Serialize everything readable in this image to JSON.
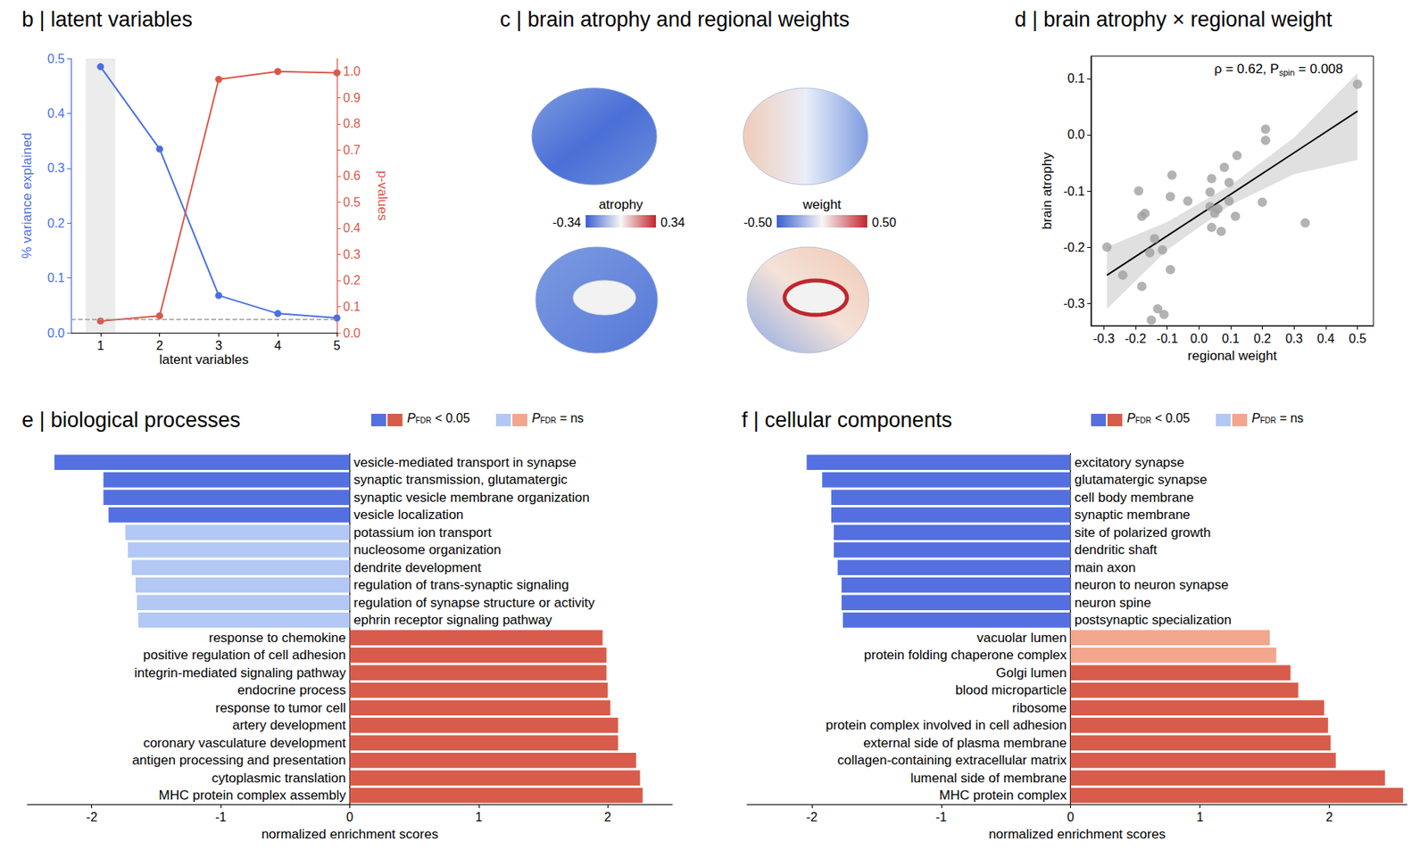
{
  "chart_data": [
    {
      "type": "line",
      "title": "b | latent variables",
      "x_label": "latent variables",
      "x": [
        1,
        2,
        3,
        4,
        5
      ],
      "xlim": [
        0.5,
        5
      ],
      "xticks": [
        1,
        2,
        3,
        4,
        5
      ],
      "highlight": [
        0.75,
        1.25
      ],
      "series": [
        {
          "name": "% variance explained",
          "color": "#4a6fe3",
          "marker": "circle",
          "values": [
            0.485,
            0.335,
            0.068,
            0.035,
            0.027
          ]
        },
        {
          "name": "p-values",
          "color": "#d9584a",
          "marker": "circle",
          "axis": "y2",
          "values": [
            0.045,
            0.065,
            0.97,
            1.0,
            0.995
          ],
          "reference_line": 0.05
        }
      ],
      "ylim": [
        0,
        0.5
      ],
      "yticks": [
        {
          "value": 0,
          "label": "0.0"
        },
        0.1,
        0.2,
        0.3,
        0.4,
        0.5
      ],
      "y2lim": [
        0,
        1.05
      ],
      "y2ticks": [
        {
          "value": 0,
          "label": "0.0"
        },
        0.1,
        0.2,
        0.3,
        0.4,
        0.5,
        0.6,
        0.7,
        0.8,
        0.9,
        {
          "value": 1,
          "label": "1.0"
        }
      ]
    },
    {
      "type": "brain_map",
      "title": "c | brain atrophy and regional weights",
      "colorbars": [
        {
          "label": "atrophy",
          "range": [
            -0.34,
            0.34
          ],
          "ticks": [
            -0.34,
            0.34
          ],
          "colors": [
            "#3a5fd0",
            "#f7f7f7",
            "#c0262d"
          ]
        },
        {
          "label": "weight",
          "range": [
            -0.5,
            0.5
          ],
          "ticks": [
            {
              "value": -0.5,
              "label": "-0.50"
            },
            {
              "value": 0.5,
              "label": "0.50"
            }
          ],
          "colors": [
            "#3a5fd0",
            "#f7f7f7",
            "#c0262d"
          ]
        }
      ]
    },
    {
      "type": "scatter",
      "title": "d | brain atrophy × regional weight",
      "x_label": "regional weight",
      "y_label": "brain atrophy",
      "color": "#a0a0a0",
      "annotation": {
        "text": "ρ = 0.62, P",
        "subscript": "spin",
        "suffix": " = 0.008"
      },
      "x": [
        0.5,
        -0.29,
        -0.24,
        -0.19,
        -0.18,
        -0.17,
        -0.18,
        -0.15,
        -0.14,
        -0.13,
        -0.11,
        -0.155,
        -0.115,
        -0.085,
        -0.09,
        -0.09,
        -0.035,
        0.035,
        0.04,
        0.035,
        0.05,
        0.04,
        0.06,
        0.07,
        0.08,
        0.095,
        0.095,
        0.12,
        0.115,
        0.2,
        0.21,
        0.21,
        0.335
      ],
      "y": [
        0.09,
        -0.2,
        -0.25,
        -0.1,
        -0.145,
        -0.14,
        -0.27,
        -0.33,
        -0.185,
        -0.31,
        -0.32,
        -0.21,
        -0.205,
        -0.072,
        -0.11,
        -0.24,
        -0.118,
        -0.102,
        -0.078,
        -0.128,
        -0.14,
        -0.165,
        -0.132,
        -0.172,
        -0.058,
        -0.085,
        -0.118,
        -0.037,
        -0.145,
        -0.12,
        0.01,
        -0.01,
        -0.157
      ],
      "fit": {
        "x": [
          -0.29,
          -0.1,
          0.1,
          0.3,
          0.5
        ],
        "y": [
          -0.25,
          -0.18,
          -0.106,
          -0.032,
          0.042
        ],
        "upper": [
          -0.2,
          -0.155,
          -0.09,
          -0.005,
          0.11
        ],
        "lower": [
          -0.31,
          -0.205,
          -0.125,
          -0.07,
          -0.045
        ]
      },
      "xlim": [
        -0.34,
        0.55
      ],
      "xticks": [
        -0.3,
        -0.2,
        -0.1,
        {
          "value": 0,
          "label": "0.0"
        },
        0.1,
        0.2,
        0.3,
        0.4,
        0.5
      ],
      "ylim": [
        -0.34,
        0.14
      ],
      "yticks": [
        -0.3,
        -0.2,
        -0.1,
        {
          "value": 0,
          "label": "0.0"
        },
        0.1
      ]
    },
    {
      "type": "bar",
      "orientation": "horizontal",
      "title": "e | biological processes",
      "x_label": "normalized enrichment scores",
      "categories": [
        "vesicle-mediated transport in synapse",
        "synaptic transmission, glutamatergic",
        "synaptic vesicle membrane organization",
        "vesicle localization",
        "potassium ion transport",
        "nucleosome organization",
        "dendrite development",
        "regulation of trans-synaptic signaling",
        "regulation of synapse structure or activity",
        "ephrin receptor signaling pathway",
        "response to chemokine",
        "positive regulation of cell adhesion",
        "integrin-mediated signaling pathway",
        "endocrine process",
        "response to tumor cell",
        "artery development",
        "coronary vasculature development",
        "antigen processing and presentation",
        "cytoplasmic translation",
        "MHC protein complex assembly"
      ],
      "values": [
        -2.29,
        -1.91,
        -1.91,
        -1.87,
        -1.74,
        -1.72,
        -1.69,
        -1.66,
        -1.65,
        -1.64,
        1.96,
        1.99,
        1.99,
        2.0,
        2.02,
        2.08,
        2.08,
        2.22,
        2.25,
        2.27
      ],
      "colors": [
        "#5470e0",
        "#5470e0",
        "#5470e0",
        "#5470e0",
        "#b3c8f4",
        "#b3c8f4",
        "#b3c8f4",
        "#b3c8f4",
        "#b3c8f4",
        "#b3c8f4",
        "#d85c4b",
        "#d85c4b",
        "#d85c4b",
        "#d85c4b",
        "#d85c4b",
        "#d85c4b",
        "#d85c4b",
        "#d85c4b",
        "#d85c4b",
        "#d85c4b"
      ],
      "key": [
        {
          "text": "P",
          "subscript": "FDR",
          "suffix": " < 0.05",
          "colors": [
            "#5470e0",
            "#d85c4b"
          ]
        },
        {
          "text": "P",
          "subscript": "FDR",
          "suffix": " = ns",
          "colors": [
            "#b3c8f4",
            "#f3a68d"
          ]
        }
      ],
      "xlim": [
        -2.5,
        2.5
      ],
      "xticks": [
        -2,
        -1,
        0,
        1,
        2
      ]
    },
    {
      "type": "bar",
      "orientation": "horizontal",
      "title": "f | cellular components",
      "x_label": "normalized enrichment scores",
      "categories": [
        "excitatory synapse",
        "glutamatergic synapse",
        "cell body membrane",
        "synaptic membrane",
        "site of polarized growth",
        "dendritic shaft",
        "main axon",
        "neuron to neuron synapse",
        "neuron spine",
        "postsynaptic specialization",
        "vacuolar lumen",
        "protein folding chaperone complex",
        "Golgi lumen",
        "blood microparticle",
        "ribosome",
        "protein complex involved in cell adhesion",
        "external side of plasma membrane",
        "collagen-containing extracellular matrix",
        "lumenal side of membrane",
        "MHC protein complex"
      ],
      "values": [
        -2.04,
        -1.92,
        -1.85,
        -1.85,
        -1.83,
        -1.83,
        -1.8,
        -1.77,
        -1.77,
        -1.76,
        1.54,
        1.59,
        1.7,
        1.76,
        1.96,
        1.99,
        2.01,
        2.05,
        2.43,
        2.57
      ],
      "colors": [
        "#5470e0",
        "#5470e0",
        "#5470e0",
        "#5470e0",
        "#5470e0",
        "#5470e0",
        "#5470e0",
        "#5470e0",
        "#5470e0",
        "#5470e0",
        "#f3a68d",
        "#f3a68d",
        "#d85c4b",
        "#d85c4b",
        "#d85c4b",
        "#d85c4b",
        "#d85c4b",
        "#d85c4b",
        "#d85c4b",
        "#d85c4b"
      ],
      "key": [
        {
          "text": "P",
          "subscript": "FDR",
          "suffix": " < 0.05",
          "colors": [
            "#5470e0",
            "#d85c4b"
          ]
        },
        {
          "text": "P",
          "subscript": "FDR",
          "suffix": " = ns",
          "colors": [
            "#b3c8f4",
            "#f3a68d"
          ]
        }
      ],
      "xlim": [
        -2.5,
        2.6
      ],
      "xticks": [
        -2,
        -1,
        0,
        1,
        2
      ]
    }
  ]
}
